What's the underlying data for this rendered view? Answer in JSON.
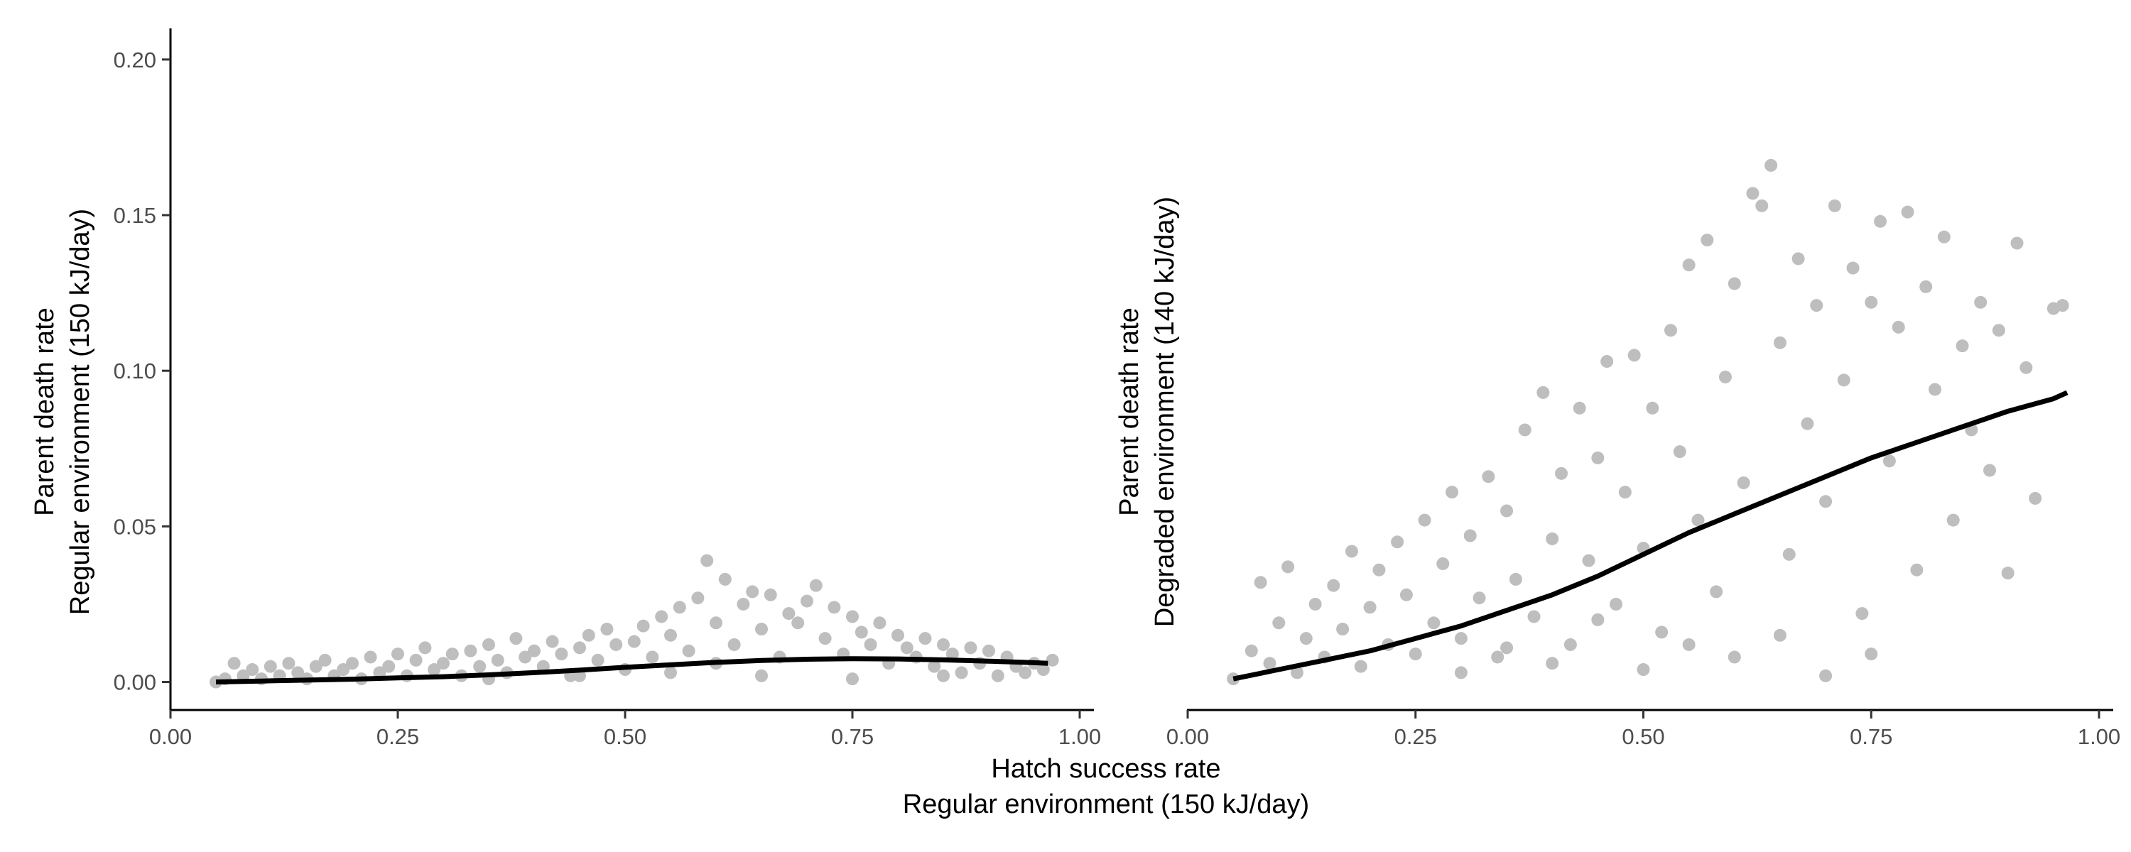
{
  "chart_data": [
    {
      "type": "scatter",
      "panel": "left",
      "title": "",
      "xlabel": "",
      "ylabel_lines": [
        "Parent death rate",
        "Regular environment (150 kJ/day)"
      ],
      "xlim": [
        0,
        1
      ],
      "ylim": [
        -0.009,
        0.21
      ],
      "x_ticks": [
        0,
        0.25,
        0.5,
        0.75,
        1
      ],
      "x_tick_labels": [
        "0.00",
        "0.25",
        "0.50",
        "0.75",
        "1.00"
      ],
      "y_ticks": [
        0,
        0.05,
        0.1,
        0.15,
        0.2
      ],
      "y_tick_labels": [
        "0.00",
        "0.05",
        "0.10",
        "0.15",
        "0.20"
      ],
      "grid": false,
      "point_color": "#bebebe",
      "line_color": "#000000",
      "points_description": "about 1000 grey points per panel; approximate sample below",
      "points": [
        [
          0.05,
          0.0
        ],
        [
          0.06,
          0.001
        ],
        [
          0.07,
          0.006
        ],
        [
          0.08,
          0.002
        ],
        [
          0.09,
          0.004
        ],
        [
          0.1,
          0.001
        ],
        [
          0.11,
          0.005
        ],
        [
          0.12,
          0.002
        ],
        [
          0.13,
          0.006
        ],
        [
          0.14,
          0.003
        ],
        [
          0.15,
          0.001
        ],
        [
          0.16,
          0.005
        ],
        [
          0.17,
          0.007
        ],
        [
          0.18,
          0.002
        ],
        [
          0.19,
          0.004
        ],
        [
          0.2,
          0.006
        ],
        [
          0.21,
          0.001
        ],
        [
          0.22,
          0.008
        ],
        [
          0.23,
          0.003
        ],
        [
          0.24,
          0.005
        ],
        [
          0.25,
          0.009
        ],
        [
          0.26,
          0.002
        ],
        [
          0.27,
          0.007
        ],
        [
          0.28,
          0.011
        ],
        [
          0.29,
          0.004
        ],
        [
          0.3,
          0.006
        ],
        [
          0.31,
          0.009
        ],
        [
          0.32,
          0.002
        ],
        [
          0.33,
          0.01
        ],
        [
          0.34,
          0.005
        ],
        [
          0.35,
          0.012
        ],
        [
          0.36,
          0.007
        ],
        [
          0.37,
          0.003
        ],
        [
          0.38,
          0.014
        ],
        [
          0.39,
          0.008
        ],
        [
          0.4,
          0.01
        ],
        [
          0.41,
          0.005
        ],
        [
          0.42,
          0.013
        ],
        [
          0.43,
          0.009
        ],
        [
          0.44,
          0.002
        ],
        [
          0.45,
          0.011
        ],
        [
          0.46,
          0.015
        ],
        [
          0.47,
          0.007
        ],
        [
          0.48,
          0.017
        ],
        [
          0.49,
          0.012
        ],
        [
          0.5,
          0.004
        ],
        [
          0.51,
          0.013
        ],
        [
          0.52,
          0.018
        ],
        [
          0.53,
          0.008
        ],
        [
          0.54,
          0.021
        ],
        [
          0.55,
          0.015
        ],
        [
          0.56,
          0.024
        ],
        [
          0.57,
          0.01
        ],
        [
          0.58,
          0.027
        ],
        [
          0.59,
          0.039
        ],
        [
          0.6,
          0.019
        ],
        [
          0.61,
          0.033
        ],
        [
          0.62,
          0.012
        ],
        [
          0.63,
          0.025
        ],
        [
          0.64,
          0.029
        ],
        [
          0.65,
          0.017
        ],
        [
          0.66,
          0.028
        ],
        [
          0.67,
          0.008
        ],
        [
          0.68,
          0.022
        ],
        [
          0.69,
          0.019
        ],
        [
          0.7,
          0.026
        ],
        [
          0.71,
          0.031
        ],
        [
          0.72,
          0.014
        ],
        [
          0.73,
          0.024
        ],
        [
          0.74,
          0.009
        ],
        [
          0.75,
          0.021
        ],
        [
          0.76,
          0.016
        ],
        [
          0.77,
          0.012
        ],
        [
          0.78,
          0.019
        ],
        [
          0.79,
          0.006
        ],
        [
          0.8,
          0.015
        ],
        [
          0.81,
          0.011
        ],
        [
          0.82,
          0.008
        ],
        [
          0.83,
          0.014
        ],
        [
          0.84,
          0.005
        ],
        [
          0.85,
          0.012
        ],
        [
          0.86,
          0.009
        ],
        [
          0.87,
          0.003
        ],
        [
          0.88,
          0.011
        ],
        [
          0.89,
          0.006
        ],
        [
          0.9,
          0.01
        ],
        [
          0.91,
          0.002
        ],
        [
          0.92,
          0.008
        ],
        [
          0.93,
          0.005
        ],
        [
          0.94,
          0.003
        ],
        [
          0.95,
          0.006
        ],
        [
          0.96,
          0.004
        ],
        [
          0.97,
          0.007
        ],
        [
          0.35,
          0.001
        ],
        [
          0.45,
          0.002
        ],
        [
          0.55,
          0.003
        ],
        [
          0.65,
          0.002
        ],
        [
          0.75,
          0.001
        ],
        [
          0.85,
          0.002
        ],
        [
          0.6,
          0.006
        ]
      ],
      "fit_line": {
        "x": [
          0.05,
          0.1,
          0.15,
          0.2,
          0.25,
          0.3,
          0.35,
          0.4,
          0.45,
          0.5,
          0.55,
          0.6,
          0.65,
          0.7,
          0.75,
          0.8,
          0.85,
          0.9,
          0.95,
          0.965
        ],
        "y": [
          0.0,
          0.0003,
          0.0006,
          0.0009,
          0.0013,
          0.0017,
          0.0023,
          0.003,
          0.0038,
          0.0047,
          0.0055,
          0.0063,
          0.0069,
          0.0073,
          0.0075,
          0.0074,
          0.0071,
          0.0067,
          0.0062,
          0.006
        ]
      }
    },
    {
      "type": "scatter",
      "panel": "right",
      "title": "",
      "xlabel": "",
      "ylabel_lines": [
        "Parent death rate",
        "Degraded environment (140 kJ/day)"
      ],
      "xlim": [
        0,
        1
      ],
      "ylim": [
        -0.009,
        0.21
      ],
      "x_ticks": [
        0,
        0.25,
        0.5,
        0.75,
        1
      ],
      "x_tick_labels": [
        "0.00",
        "0.25",
        "0.50",
        "0.75",
        "1.00"
      ],
      "y_ticks": [],
      "y_tick_labels": [],
      "grid": false,
      "point_color": "#bebebe",
      "line_color": "#000000",
      "points": [
        [
          0.05,
          0.001
        ],
        [
          0.07,
          0.01
        ],
        [
          0.08,
          0.032
        ],
        [
          0.09,
          0.006
        ],
        [
          0.1,
          0.019
        ],
        [
          0.11,
          0.037
        ],
        [
          0.12,
          0.003
        ],
        [
          0.13,
          0.014
        ],
        [
          0.14,
          0.025
        ],
        [
          0.15,
          0.008
        ],
        [
          0.16,
          0.031
        ],
        [
          0.17,
          0.017
        ],
        [
          0.18,
          0.042
        ],
        [
          0.19,
          0.005
        ],
        [
          0.2,
          0.024
        ],
        [
          0.21,
          0.036
        ],
        [
          0.22,
          0.012
        ],
        [
          0.23,
          0.045
        ],
        [
          0.24,
          0.028
        ],
        [
          0.25,
          0.009
        ],
        [
          0.26,
          0.052
        ],
        [
          0.27,
          0.019
        ],
        [
          0.28,
          0.038
        ],
        [
          0.29,
          0.061
        ],
        [
          0.3,
          0.014
        ],
        [
          0.31,
          0.047
        ],
        [
          0.32,
          0.027
        ],
        [
          0.33,
          0.066
        ],
        [
          0.34,
          0.008
        ],
        [
          0.35,
          0.055
        ],
        [
          0.36,
          0.033
        ],
        [
          0.37,
          0.081
        ],
        [
          0.38,
          0.021
        ],
        [
          0.39,
          0.093
        ],
        [
          0.4,
          0.046
        ],
        [
          0.41,
          0.067
        ],
        [
          0.42,
          0.012
        ],
        [
          0.43,
          0.088
        ],
        [
          0.44,
          0.039
        ],
        [
          0.45,
          0.072
        ],
        [
          0.46,
          0.103
        ],
        [
          0.47,
          0.025
        ],
        [
          0.48,
          0.061
        ],
        [
          0.49,
          0.105
        ],
        [
          0.5,
          0.043
        ],
        [
          0.51,
          0.088
        ],
        [
          0.52,
          0.016
        ],
        [
          0.53,
          0.113
        ],
        [
          0.54,
          0.074
        ],
        [
          0.55,
          0.134
        ],
        [
          0.56,
          0.052
        ],
        [
          0.57,
          0.142
        ],
        [
          0.58,
          0.029
        ],
        [
          0.59,
          0.098
        ],
        [
          0.6,
          0.128
        ],
        [
          0.61,
          0.064
        ],
        [
          0.62,
          0.157
        ],
        [
          0.63,
          0.153
        ],
        [
          0.64,
          0.166
        ],
        [
          0.65,
          0.109
        ],
        [
          0.66,
          0.041
        ],
        [
          0.67,
          0.136
        ],
        [
          0.68,
          0.083
        ],
        [
          0.69,
          0.121
        ],
        [
          0.7,
          0.058
        ],
        [
          0.71,
          0.153
        ],
        [
          0.72,
          0.097
        ],
        [
          0.73,
          0.133
        ],
        [
          0.74,
          0.022
        ],
        [
          0.75,
          0.122
        ],
        [
          0.76,
          0.148
        ],
        [
          0.77,
          0.071
        ],
        [
          0.78,
          0.114
        ],
        [
          0.79,
          0.151
        ],
        [
          0.8,
          0.036
        ],
        [
          0.81,
          0.127
        ],
        [
          0.82,
          0.094
        ],
        [
          0.83,
          0.143
        ],
        [
          0.84,
          0.052
        ],
        [
          0.85,
          0.108
        ],
        [
          0.86,
          0.081
        ],
        [
          0.87,
          0.122
        ],
        [
          0.88,
          0.068
        ],
        [
          0.89,
          0.113
        ],
        [
          0.9,
          0.035
        ],
        [
          0.91,
          0.141
        ],
        [
          0.92,
          0.101
        ],
        [
          0.93,
          0.059
        ],
        [
          0.95,
          0.12
        ],
        [
          0.96,
          0.121
        ],
        [
          0.3,
          0.003
        ],
        [
          0.4,
          0.006
        ],
        [
          0.5,
          0.004
        ],
        [
          0.6,
          0.008
        ],
        [
          0.7,
          0.002
        ],
        [
          0.55,
          0.012
        ],
        [
          0.65,
          0.015
        ],
        [
          0.75,
          0.009
        ],
        [
          0.45,
          0.02
        ],
        [
          0.35,
          0.011
        ]
      ],
      "fit_line": {
        "x": [
          0.05,
          0.1,
          0.15,
          0.2,
          0.25,
          0.3,
          0.35,
          0.4,
          0.45,
          0.5,
          0.55,
          0.6,
          0.65,
          0.7,
          0.75,
          0.8,
          0.85,
          0.9,
          0.95,
          0.965
        ],
        "y": [
          0.001,
          0.004,
          0.007,
          0.01,
          0.014,
          0.018,
          0.023,
          0.028,
          0.034,
          0.041,
          0.048,
          0.054,
          0.06,
          0.066,
          0.072,
          0.077,
          0.082,
          0.087,
          0.091,
          0.093
        ]
      }
    }
  ],
  "shared_xlabel_lines": [
    "Hatch success rate",
    "Regular environment (150 kJ/day)"
  ]
}
